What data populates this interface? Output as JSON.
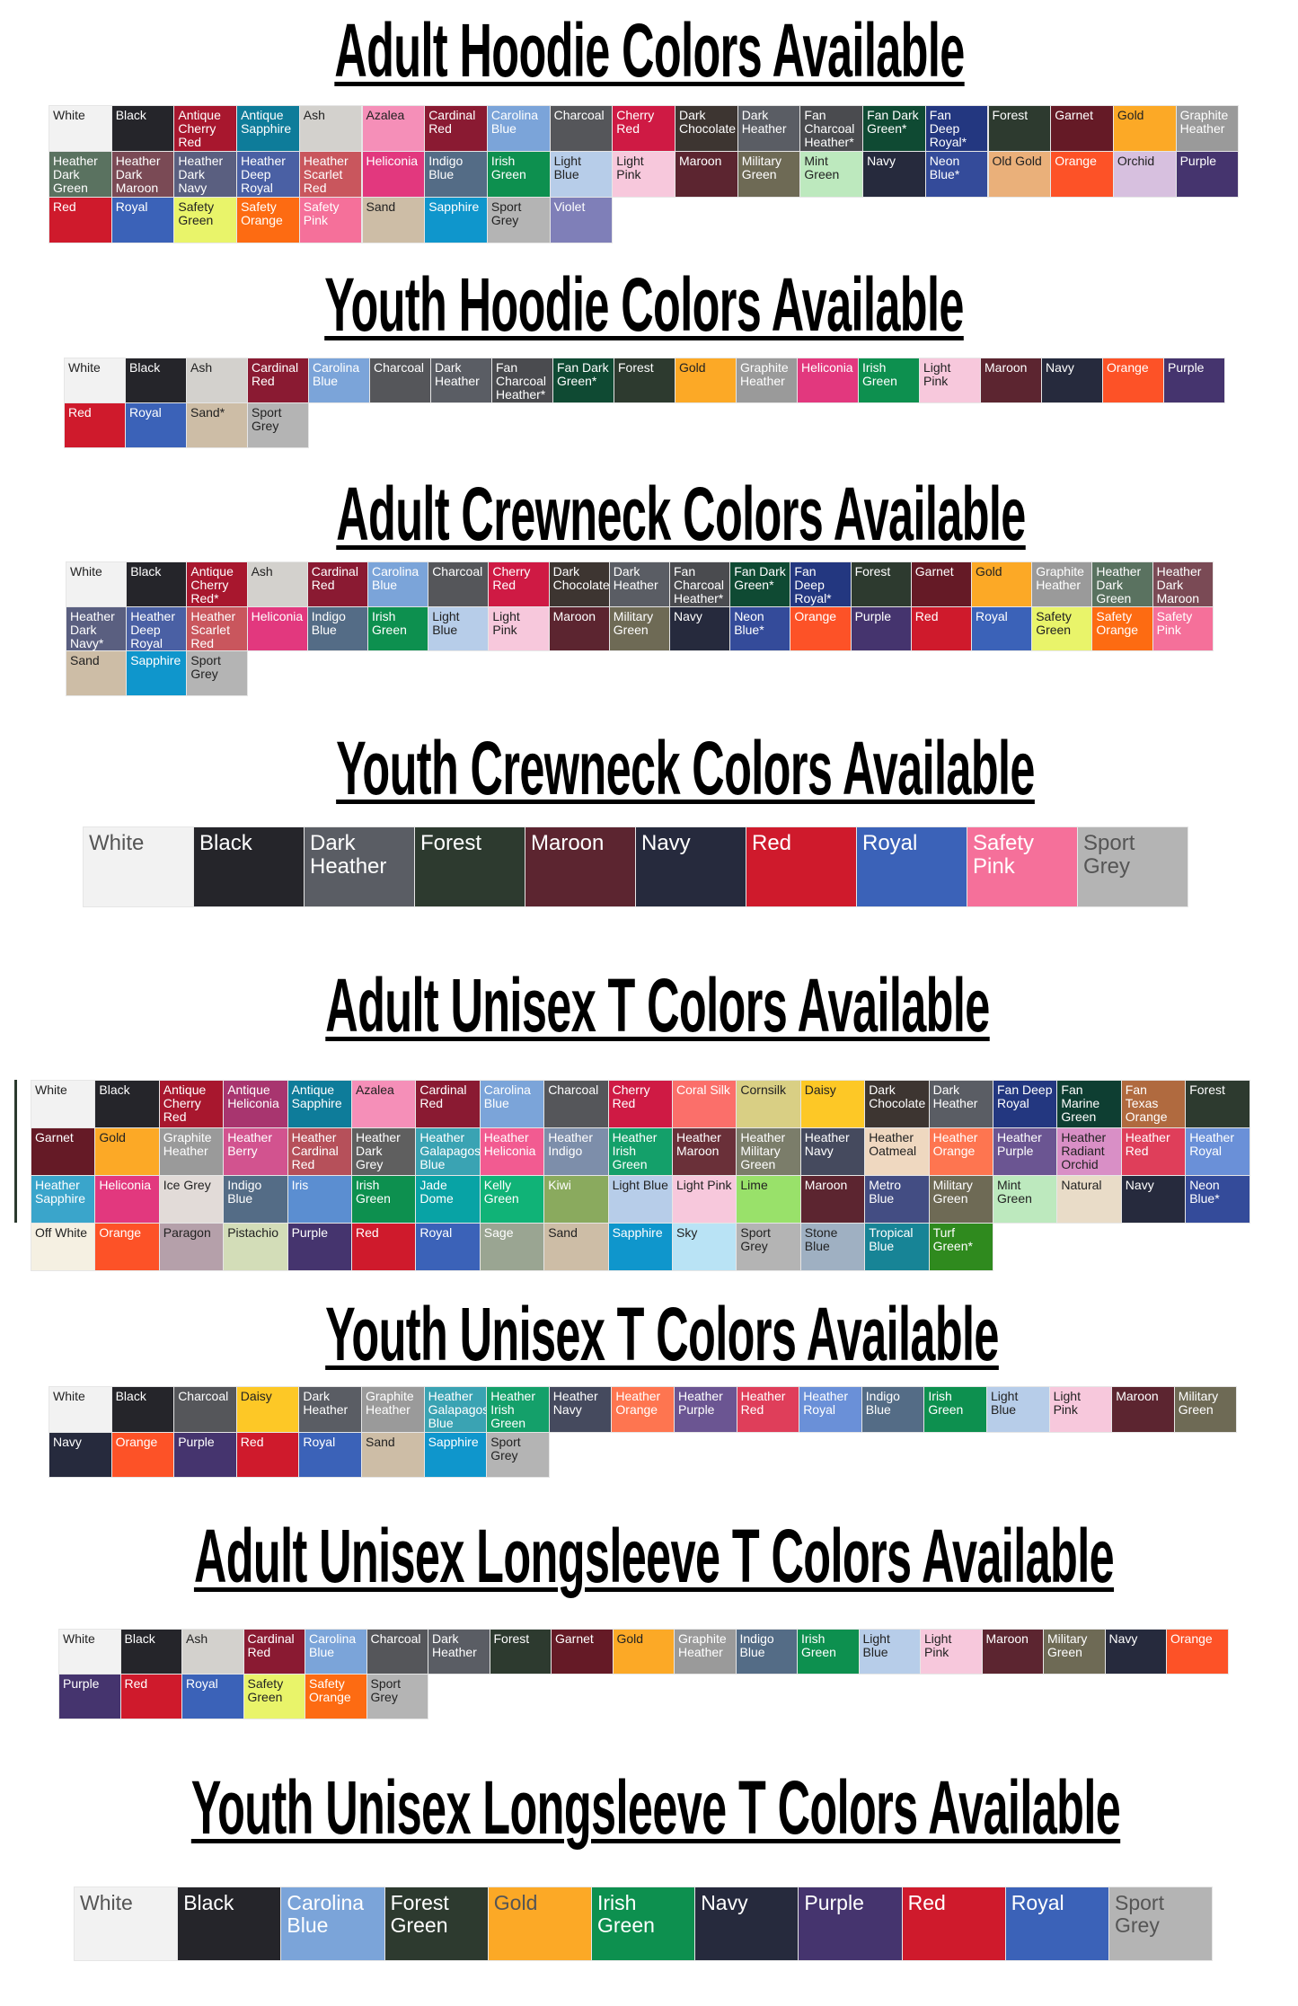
{
  "sections": [
    {
      "title": "Adult Hoodie Colors Available",
      "rows": [
        [
          "White",
          "Black",
          "Antique Cherry Red",
          "Antique Sapphire",
          "Ash",
          "Azalea",
          "Cardinal Red",
          "Carolina Blue",
          "Charcoal",
          "Cherry Red",
          "Dark Chocolate",
          "Dark Heather",
          "Fan Charcoal Heather*",
          "Fan Dark Green*",
          "Fan Deep Royal*",
          "Forest",
          "Garnet",
          "Gold",
          "Graphite Heather"
        ],
        [
          "Heather Dark Green",
          "Heather Dark Maroon",
          "Heather Dark Navy",
          "Heather Deep Royal",
          "Heather Scarlet Red",
          "Heliconia",
          "Indigo Blue",
          "Irish Green",
          "Light Blue",
          "Light Pink",
          "Maroon",
          "Military Green",
          "Mint Green",
          "Navy",
          "Neon Blue*",
          "Old Gold",
          "Orange",
          "Orchid",
          "Purple"
        ],
        [
          "Red",
          "Royal",
          "Safety Green",
          "Safety Orange",
          "Safety Pink",
          "Sand",
          "Sapphire",
          "Sport Grey",
          "Violet"
        ]
      ]
    },
    {
      "title": "Youth Hoodie Colors Available",
      "rows": [
        [
          "White",
          "Black",
          "Ash",
          "Cardinal Red",
          "Carolina Blue",
          "Charcoal",
          "Dark Heather",
          "Fan Charcoal Heather*",
          "Fan Dark Green*",
          "Forest",
          "Gold",
          "Graphite Heather",
          "Heliconia",
          "Irish Green",
          "Light Pink",
          "Maroon",
          "Navy",
          "Orange",
          "Purple"
        ],
        [
          "Red",
          "Royal",
          "Sand*",
          "Sport Grey"
        ]
      ]
    },
    {
      "title": "Adult Crewneck Colors Available",
      "rows": [
        [
          "White",
          "Black",
          "Antique Cherry Red*",
          "Ash",
          "Cardinal Red",
          "Carolina Blue",
          "Charcoal",
          "Cherry Red",
          "Dark Chocolate",
          "Dark Heather",
          "Fan Charcoal Heather*",
          "Fan Dark Green*",
          "Fan Deep Royal*",
          "Forest",
          "Garnet",
          "Gold",
          "Graphite Heather",
          "Heather Dark Green",
          "Heather Dark Maroon"
        ],
        [
          "Heather Dark Navy*",
          "Heather Deep Royal",
          "Heather Scarlet Red",
          "Heliconia",
          "Indigo Blue",
          "Irish Green",
          "Light Blue",
          "Light Pink",
          "Maroon",
          "Military Green",
          "Navy",
          "Neon Blue*",
          "Orange",
          "Purple",
          "Red",
          "Royal",
          "Safety Green",
          "Safety Orange",
          "Safety Pink"
        ],
        [
          "Sand",
          "Sapphire",
          "Sport Grey"
        ]
      ]
    },
    {
      "title": "Youth Crewneck Colors Available",
      "rows": [
        [
          "White",
          "Black",
          "Dark Heather",
          "Forest",
          "Maroon",
          "Navy",
          "Red",
          "Royal",
          "Safety Pink",
          "Sport Grey"
        ]
      ]
    },
    {
      "title": "Adult Unisex T Colors Available",
      "rows": [
        [
          "White",
          "Black",
          "Antique Cherry Red",
          "Antique Heliconia",
          "Antique Sapphire",
          "Azalea",
          "Cardinal Red",
          "Carolina Blue",
          "Charcoal",
          "Cherry Red",
          "Coral Silk",
          "Cornsilk",
          "Daisy",
          "Dark Chocolate",
          "Dark Heather",
          "Fan Deep Royal",
          "Fan Marine Green",
          "Fan Texas Orange",
          "Forest"
        ],
        [
          "Garnet",
          "Gold",
          "Graphite Heather",
          "Heather Berry",
          "Heather Cardinal Red",
          "Heather Dark Grey",
          "Heather Galapagos Blue",
          "Heather Heliconia",
          "Heather Indigo",
          "Heather Irish Green",
          "Heather Maroon",
          "Heather Military Green",
          "Heather Navy",
          "Heather Oatmeal",
          "Heather Orange",
          "Heather Purple",
          "Heather Radiant Orchid",
          "Heather Red",
          "Heather Royal"
        ],
        [
          "Heather Sapphire",
          "Heliconia",
          "Ice Grey",
          "Indigo Blue",
          "Iris",
          "Irish Green",
          "Jade Dome",
          "Kelly Green",
          "Kiwi",
          "Light Blue",
          "Light Pink",
          "Lime",
          "Maroon",
          "Metro Blue",
          "Military Green",
          "Mint Green",
          "Natural",
          "Navy",
          "Neon Blue*"
        ],
        [
          "Off White",
          "Orange",
          "Paragon",
          "Pistachio",
          "Purple",
          "Red",
          "Royal",
          "Sage",
          "Sand",
          "Sapphire",
          "Sky",
          "Sport Grey",
          "Stone Blue",
          "Tropical Blue",
          "Turf Green*"
        ]
      ]
    },
    {
      "title": "Youth Unisex T Colors Available",
      "rows": [
        [
          "White",
          "Black",
          "Charcoal",
          "Daisy",
          "Dark Heather",
          "Graphite Heather",
          "Heather Galapagos Blue",
          "Heather Irish Green",
          "Heather Navy",
          "Heather Orange",
          "Heather Purple",
          "Heather Red",
          "Heather Royal",
          "Indigo Blue",
          "Irish Green",
          "Light Blue",
          "Light Pink",
          "Maroon",
          "Military Green"
        ],
        [
          "Navy",
          "Orange",
          "Purple",
          "Red",
          "Royal",
          "Sand",
          "Sapphire",
          "Sport Grey"
        ]
      ]
    },
    {
      "title": "Adult Unisex Longsleeve T Colors Available",
      "rows": [
        [
          "White",
          "Black",
          "Ash",
          "Cardinal Red",
          "Carolina Blue",
          "Charcoal",
          "Dark Heather",
          "Forest",
          "Garnet",
          "Gold",
          "Graphite Heather",
          "Indigo Blue",
          "Irish Green",
          "Light Blue",
          "Light Pink",
          "Maroon",
          "Military Green",
          "Navy",
          "Orange"
        ],
        [
          "Purple",
          "Red",
          "Royal",
          "Safety Green",
          "Safety Orange",
          "Sport Grey"
        ]
      ]
    },
    {
      "title": "Youth Unisex Longsleeve T Colors Available",
      "rows": [
        [
          "White",
          "Black",
          "Carolina Blue",
          "Forest Green",
          "Gold",
          "Irish Green",
          "Navy",
          "Purple",
          "Red",
          "Royal",
          "Sport Grey"
        ]
      ]
    }
  ],
  "palette": {
    "White": "#f2f2f2",
    "Black": "#25252a",
    "Antique Cherry Red": "#a8172e",
    "Antique Sapphire": "#0e7c9a",
    "Ash": "#d3d1cd",
    "Azalea": "#f58fb8",
    "Cardinal Red": "#8a1a32",
    "Carolina Blue": "#7ba4d9",
    "Charcoal": "#55565a",
    "Cherry Red": "#cf1a44",
    "Dark Chocolate": "#3d3531",
    "Dark Heather": "#5a5d64",
    "Fan Charcoal Heather": "#4a4b4f",
    "Fan Dark Green": "#0f4a33",
    "Fan Deep Royal": "#233780",
    "Forest": "#2d3a2f",
    "Forest Green": "#2d3a2f",
    "Garnet": "#651a26",
    "Gold": "#fca926",
    "Graphite Heather": "#9a9a9a",
    "Heather Dark Green": "#5a7260",
    "Heather Dark Maroon": "#7a4a55",
    "Heather Dark Navy": "#5a5f80",
    "Heather Deep Royal": "#4a60a4",
    "Heather Scarlet Red": "#c9565d",
    "Heliconia": "#e2387e",
    "Indigo Blue": "#546c86",
    "Irish Green": "#0d904f",
    "Light Blue": "#b7cde9",
    "Light Pink": "#f7c8dc",
    "Maroon": "#5c2530",
    "Military Green": "#6e6a55",
    "Mint Green": "#bde9be",
    "Navy": "#262a3d",
    "Neon Blue": "#344b9a",
    "Old Gold": "#eab07a",
    "Orange": "#fd5227",
    "Orchid": "#d7c0df",
    "Purple": "#45346e",
    "Red": "#cf1a2c",
    "Royal": "#3b62b8",
    "Safety Green": "#e9f46a",
    "Safety Orange": "#fd6b12",
    "Safety Pink": "#f5709a",
    "Sand": "#cdbda6",
    "Sapphire": "#0f96cc",
    "Sport Grey": "#b4b4b4",
    "Violet": "#7f7fb8",
    "Antique Heliconia": "#a8356f",
    "Coral Silk": "#fb6f6a",
    "Cornsilk": "#d9cf84",
    "Daisy": "#fdc826",
    "Fan Marine Green": "#0e3e32",
    "Fan Texas Orange": "#b06a3f",
    "Heather Berry": "#d2538f",
    "Heather Cardinal Red": "#b6505a",
    "Heather Dark Grey": "#5f5f5f",
    "Heather Galapagos Blue": "#3aa3b3",
    "Heather Heliconia": "#f25b91",
    "Heather Indigo": "#7d8eaa",
    "Heather Irish Green": "#14a06a",
    "Heather Maroon": "#6a3039",
    "Heather Military Green": "#7b7d6a",
    "Heather Navy": "#454a5e",
    "Heather Oatmeal": "#efd8c0",
    "Heather Orange": "#fe7550",
    "Heather Purple": "#6b5592",
    "Heather Radiant Orchid": "#d98fc6",
    "Heather Red": "#df3e5a",
    "Heather Royal": "#6a90d8",
    "Heather Sapphire": "#3aa5cb",
    "Ice Grey": "#e2dbd8",
    "Iris": "#5b8ed1",
    "Jade Dome": "#08a3a5",
    "Kelly Green": "#10b377",
    "Kiwi": "#8aaa5e",
    "Lime": "#99e16a",
    "Metro Blue": "#434d83",
    "Natural": "#e9dcc8",
    "Off White": "#f5f0e2",
    "Paragon": "#b5a0aa",
    "Pistachio": "#d3ddb8",
    "Sage": "#9aa592",
    "Sky": "#b9e3f5",
    "Stone Blue": "#9fb0c2",
    "Tropical Blue": "#178496",
    "Turf Green": "#2f8a1e"
  }
}
